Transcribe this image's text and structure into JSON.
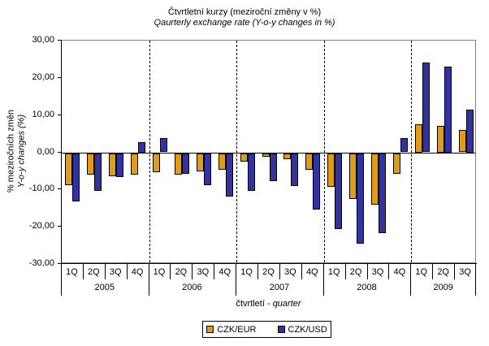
{
  "title": "Čtvrtletní kurzy (meziroční změny v %)",
  "subtitle": "Qaurterly exchange rate (Y-o-y changes in %)",
  "y_axis": {
    "title_cz": "% meziročních změn",
    "title_en": "Y-o-y changes (%)"
  },
  "x_axis": {
    "title_cz": "čtvrtletí - ",
    "title_en": "quarter"
  },
  "legend": {
    "items": [
      {
        "label": "CZK/EUR",
        "color": "#E09C18"
      },
      {
        "label": "CZK/USD",
        "color": "#3333A0"
      }
    ]
  },
  "colors": {
    "czk_eur": "#E09C18",
    "czk_usd": "#3333A0",
    "plot_border": "#808080",
    "axis": "#000000"
  },
  "chart_data": {
    "type": "bar",
    "title": "Čtvrtletní kurzy (meziroční změny v %)",
    "subtitle": "Qaurterly exchange rate (Y-o-y changes in %)",
    "xlabel": "čtvrtletí - quarter",
    "ylabel": "% meziročních změn / Y-o-y changes (%)",
    "ylim": [
      -30,
      30
    ],
    "y_ticks": [
      "30,00",
      "20,00",
      "10,00",
      "0,00",
      "-10,00",
      "-20,00",
      "-30,00"
    ],
    "grid": false,
    "legend_position": "bottom",
    "groups": [
      {
        "year": "2005",
        "quarters": [
          "1Q",
          "2Q",
          "3Q",
          "4Q"
        ]
      },
      {
        "year": "2006",
        "quarters": [
          "1Q",
          "2Q",
          "3Q",
          "4Q"
        ]
      },
      {
        "year": "2007",
        "quarters": [
          "1Q",
          "2Q",
          "3Q",
          "4Q"
        ]
      },
      {
        "year": "2008",
        "quarters": [
          "1Q",
          "2Q",
          "3Q",
          "4Q"
        ]
      },
      {
        "year": "2009",
        "quarters": [
          "1Q",
          "2Q",
          "3Q"
        ]
      }
    ],
    "categories": [
      "2005 1Q",
      "2005 2Q",
      "2005 3Q",
      "2005 4Q",
      "2006 1Q",
      "2006 2Q",
      "2006 3Q",
      "2006 4Q",
      "2007 1Q",
      "2007 2Q",
      "2007 3Q",
      "2007 4Q",
      "2008 1Q",
      "2008 2Q",
      "2008 3Q",
      "2008 4Q",
      "2009 1Q",
      "2009 2Q",
      "2009 3Q"
    ],
    "series": [
      {
        "name": "CZK/EUR",
        "color": "#E09C18",
        "values": [
          -8.6,
          -5.8,
          -6.2,
          -5.8,
          -5.1,
          -5.8,
          -4.8,
          -4.5,
          -2.2,
          -0.9,
          -1.6,
          -4.5,
          -9.0,
          -12.3,
          -13.9,
          -5.6,
          7.5,
          7.2,
          6.1
        ]
      },
      {
        "name": "CZK/USD",
        "color": "#3333A0",
        "values": [
          -12.9,
          -10.1,
          -6.4,
          2.7,
          3.8,
          -5.6,
          -8.6,
          -11.7,
          -10.1,
          -7.5,
          -8.8,
          -15.2,
          -20.4,
          -24.3,
          -21.5,
          3.8,
          24.1,
          23.1,
          11.4
        ]
      }
    ]
  }
}
